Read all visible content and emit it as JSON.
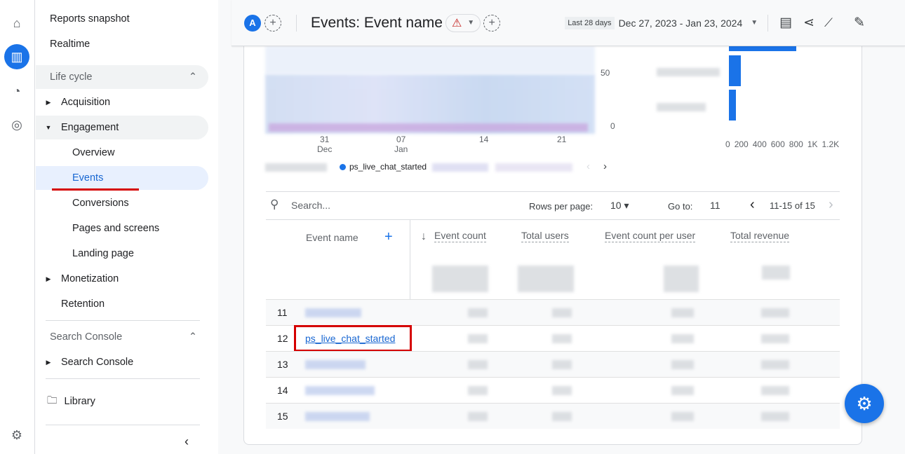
{
  "rail": {
    "icons": [
      "home-icon",
      "reports-icon",
      "explore-icon",
      "advertising-icon",
      "settings-icon"
    ]
  },
  "nav": {
    "reports_snapshot": "Reports snapshot",
    "realtime": "Realtime",
    "life_cycle": "Life cycle",
    "acquisition": "Acquisition",
    "engagement": "Engagement",
    "overview": "Overview",
    "events": "Events",
    "conversions": "Conversions",
    "pages_screens": "Pages and screens",
    "landing_page": "Landing page",
    "monetization": "Monetization",
    "retention": "Retention",
    "search_console_section": "Search Console",
    "search_console": "Search Console",
    "library": "Library"
  },
  "header": {
    "avatar": "A",
    "title": "Events: Event name",
    "date_label": "Last 28 days",
    "date_range": "Dec 27, 2023 - Jan 23, 2024"
  },
  "chart": {
    "y_ticks": [
      "50",
      "0"
    ],
    "x_ticks": [
      {
        "d": "31",
        "m": "Dec"
      },
      {
        "d": "07",
        "m": "Jan"
      },
      {
        "d": "14",
        "m": ""
      },
      {
        "d": "21",
        "m": ""
      }
    ],
    "bar_ticks": [
      "0",
      "200",
      "400",
      "600",
      "800",
      "1K",
      "1.2K"
    ],
    "legend_visible": "ps_live_chat_started",
    "accent": "#1a73e8"
  },
  "table": {
    "search_placeholder": "Search...",
    "rows_per_page_label": "Rows per page:",
    "rows_per_page": "10",
    "goto_label": "Go to:",
    "goto_value": "11",
    "pagination": "11-15 of 15",
    "columns": [
      "Event name",
      "Event count",
      "Total users",
      "Event count per user",
      "Total revenue"
    ],
    "rows": [
      {
        "n": "11",
        "name": ""
      },
      {
        "n": "12",
        "name": "ps_live_chat_started"
      },
      {
        "n": "13",
        "name": ""
      },
      {
        "n": "14",
        "name": ""
      },
      {
        "n": "15",
        "name": ""
      }
    ]
  },
  "highlight_color": "#d50000"
}
